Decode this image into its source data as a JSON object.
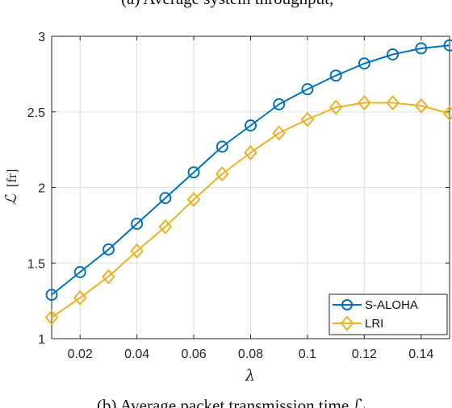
{
  "captions": {
    "top": "(a) Average system throughput,",
    "bottom": "(b) Average packet transmission time ℒ."
  },
  "chart_data": {
    "type": "line",
    "title": "",
    "xlabel": "λ",
    "ylabel_symbol": "ℒ",
    "ylabel_unit": "[fr]",
    "xlim": [
      0.01,
      0.15
    ],
    "ylim": [
      1,
      3
    ],
    "xticks": [
      0.02,
      0.04,
      0.06,
      0.08,
      0.1,
      0.12,
      0.14
    ],
    "xtick_labels": [
      "0.02",
      "0.04",
      "0.06",
      "0.08",
      "0.1",
      "0.12",
      "0.14"
    ],
    "yticks": [
      1,
      1.5,
      2,
      2.5,
      3
    ],
    "ytick_labels": [
      "1",
      "1.5",
      "2",
      "2.5",
      "3"
    ],
    "grid": true,
    "legend_position": "bottom-right",
    "x": [
      0.01,
      0.02,
      0.03,
      0.04,
      0.05,
      0.06,
      0.07,
      0.08,
      0.09,
      0.1,
      0.11,
      0.12,
      0.13,
      0.14,
      0.15
    ],
    "series": [
      {
        "name": "S-ALOHA",
        "color": "#0072BD",
        "marker": "circle",
        "values": [
          1.29,
          1.44,
          1.59,
          1.76,
          1.93,
          2.1,
          2.27,
          2.41,
          2.55,
          2.65,
          2.74,
          2.82,
          2.88,
          2.92,
          2.94
        ]
      },
      {
        "name": "LRI",
        "color": "#EDB120",
        "marker": "diamond",
        "values": [
          1.14,
          1.27,
          1.41,
          1.58,
          1.74,
          1.92,
          2.09,
          2.23,
          2.36,
          2.45,
          2.53,
          2.56,
          2.56,
          2.54,
          2.49
        ]
      }
    ]
  }
}
